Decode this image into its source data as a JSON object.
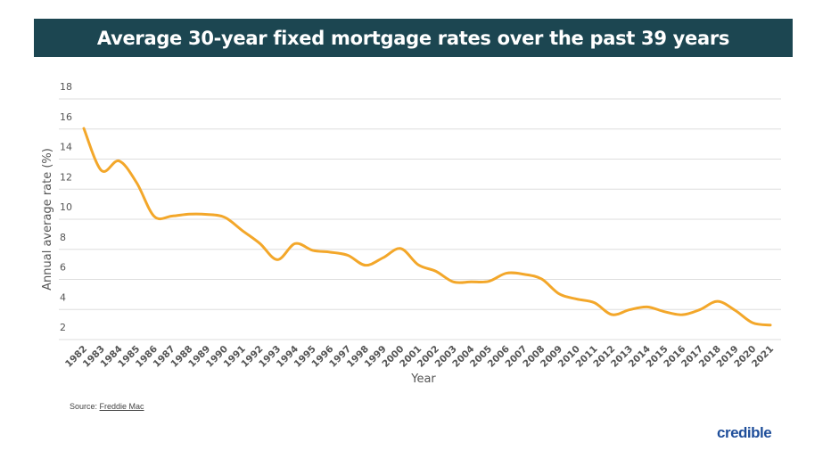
{
  "chart_data": {
    "type": "line",
    "title": "Average 30-year fixed mortgage rates over the past 39 years",
    "xlabel": "Year",
    "ylabel": "Annual average rate (%)",
    "ylim": [
      2,
      18
    ],
    "yticks": [
      2,
      4,
      6,
      8,
      10,
      12,
      14,
      16,
      18
    ],
    "grid": true,
    "line_color": "#f3a72a",
    "x": [
      "1982",
      "1983",
      "1984",
      "1985",
      "1986",
      "1987",
      "1988",
      "1989",
      "1990",
      "1991",
      "1992",
      "1993",
      "1994",
      "1995",
      "1996",
      "1997",
      "1998",
      "1999",
      "2000",
      "2001",
      "2002",
      "2003",
      "2004",
      "2005",
      "2006",
      "2007",
      "2008",
      "2009",
      "2010",
      "2011",
      "2012",
      "2013",
      "2014",
      "2015",
      "2016",
      "2017",
      "2018",
      "2019",
      "2020",
      "2021"
    ],
    "values": [
      16.04,
      13.24,
      13.88,
      12.43,
      10.19,
      10.21,
      10.34,
      10.32,
      10.13,
      9.25,
      8.39,
      7.31,
      8.38,
      7.93,
      7.81,
      7.6,
      6.94,
      7.44,
      8.05,
      6.97,
      6.54,
      5.83,
      5.84,
      5.87,
      6.41,
      6.34,
      6.03,
      5.04,
      4.69,
      4.45,
      3.66,
      3.98,
      4.17,
      3.85,
      3.65,
      3.99,
      4.54,
      3.94,
      3.11,
      2.96
    ]
  },
  "colors": {
    "title_bar": "#1c4651",
    "logo": "#1f4e9a"
  },
  "footer": {
    "source_label": "Source: ",
    "source_link": "Freddie Mac",
    "logo": "credible"
  }
}
